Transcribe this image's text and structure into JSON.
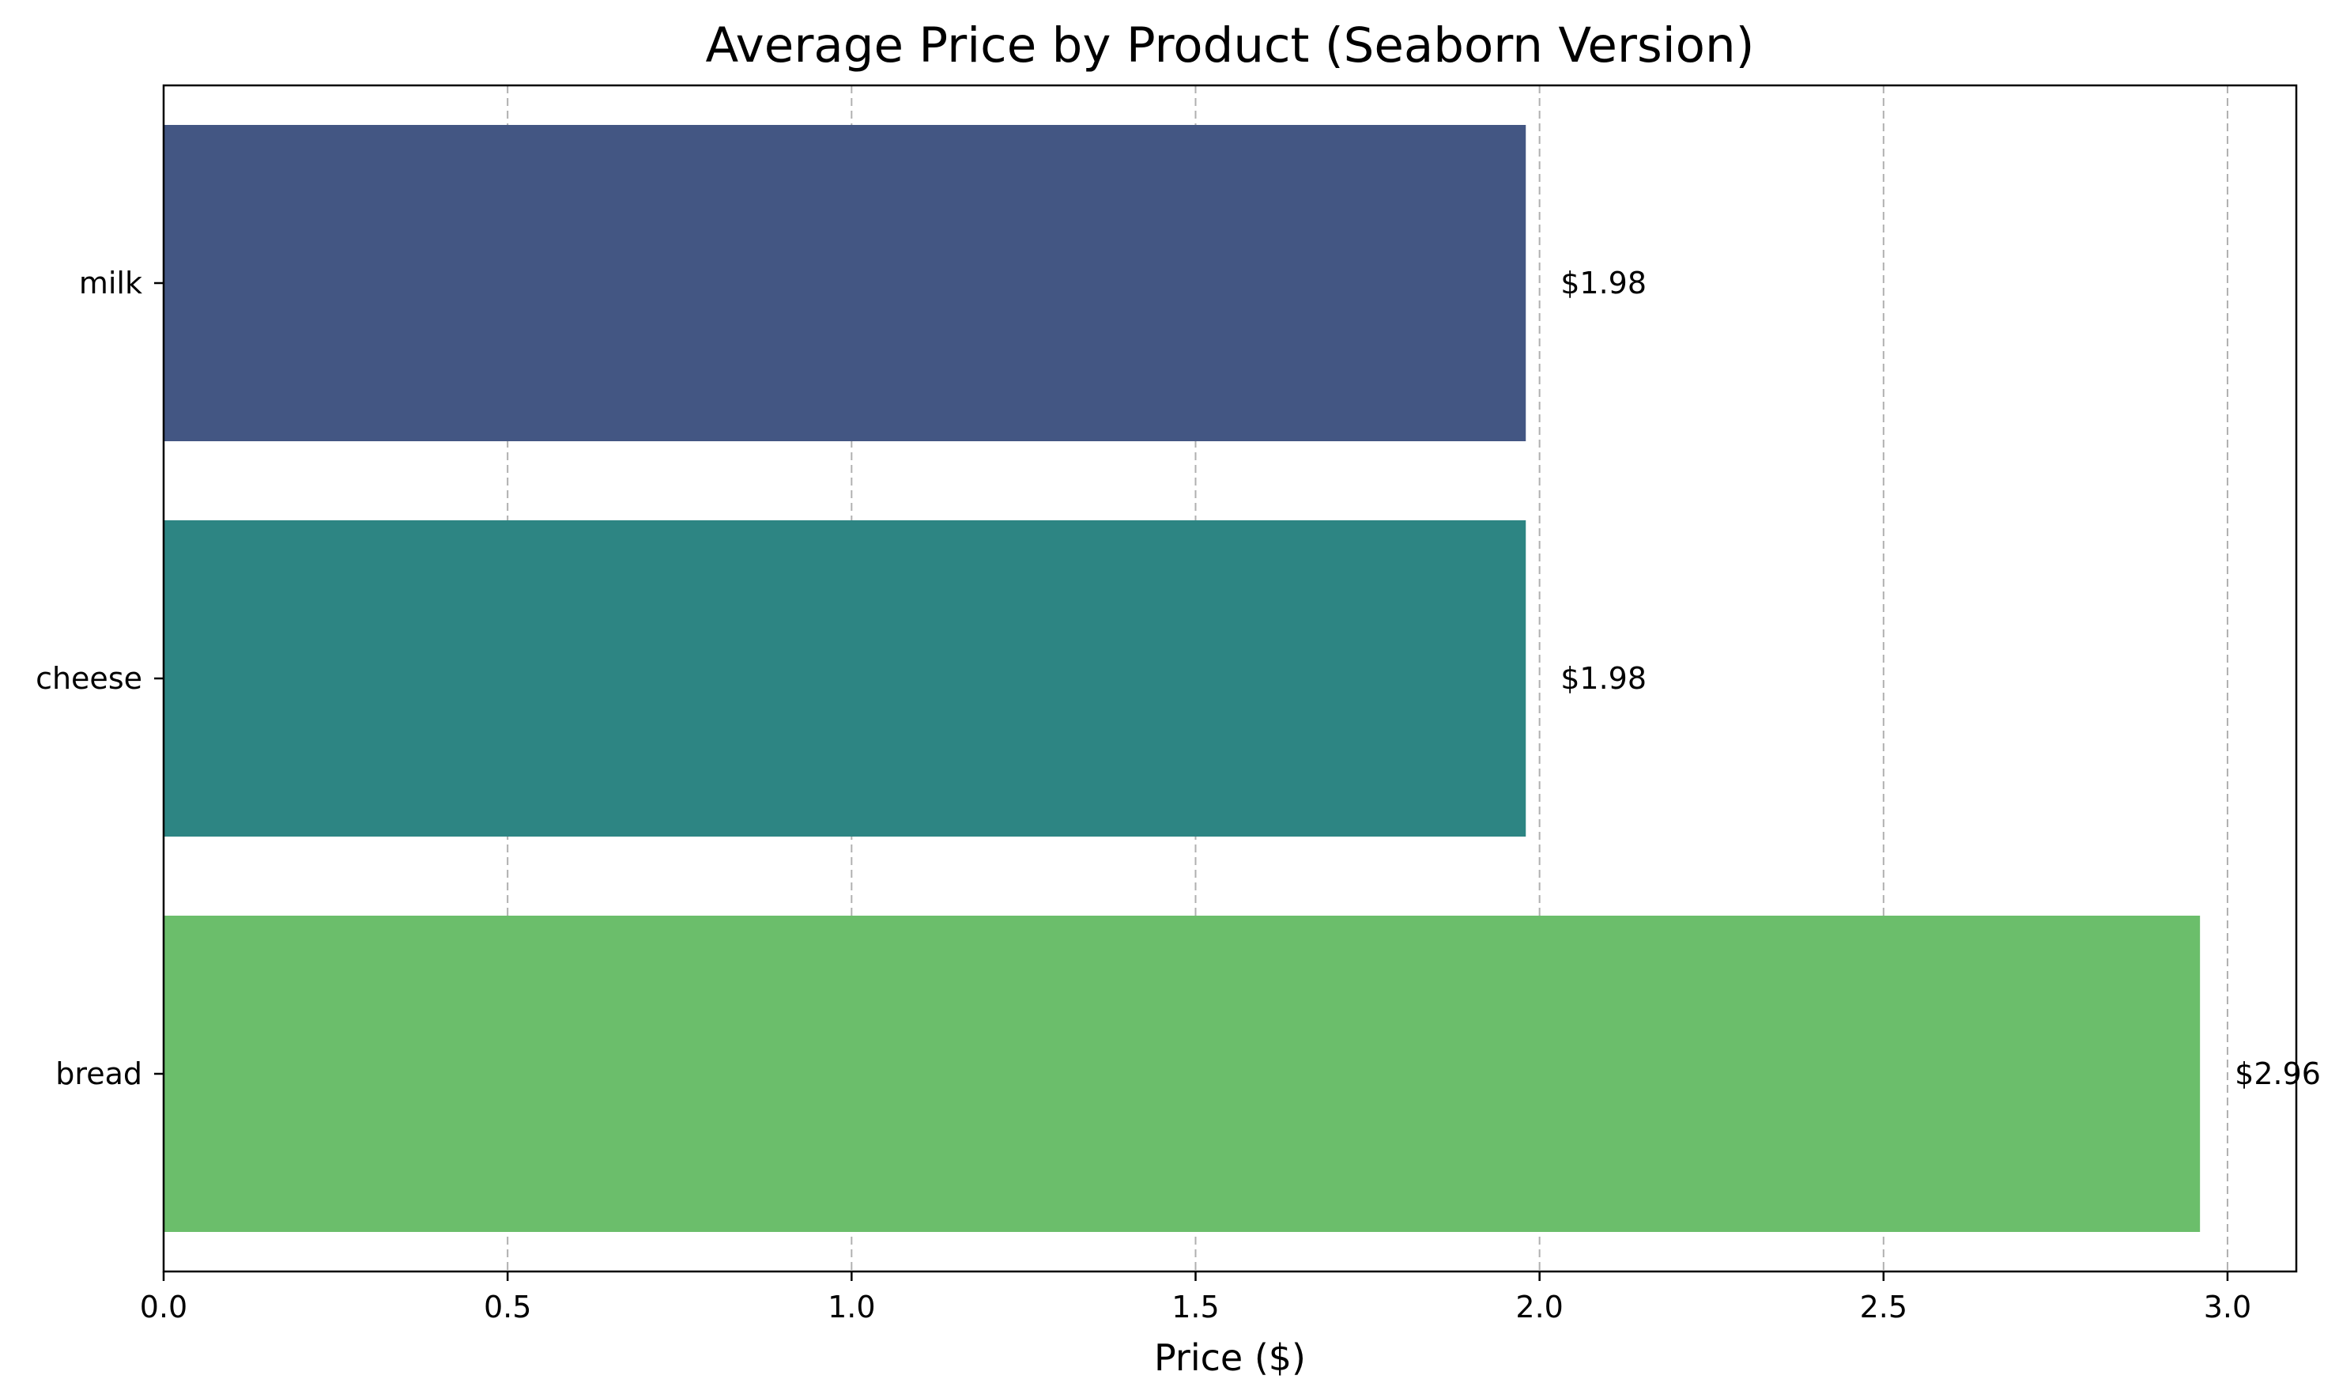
{
  "chart_data": {
    "type": "bar",
    "orientation": "horizontal",
    "title": "Average Price by Product (Seaborn Version)",
    "xlabel": "Price ($)",
    "ylabel": "",
    "categories": [
      "milk",
      "cheese",
      "bread"
    ],
    "values": [
      1.98,
      1.98,
      2.96
    ],
    "value_labels": [
      "$1.98",
      "$1.98",
      "$2.96"
    ],
    "colors": [
      "#435683",
      "#2d8583",
      "#6bbe6b"
    ],
    "xlim": [
      0,
      3.1
    ],
    "xticks": [
      0.0,
      0.5,
      1.0,
      1.5,
      2.0,
      2.5,
      3.0
    ],
    "xtick_labels": [
      "0.0",
      "0.5",
      "1.0",
      "1.5",
      "2.0",
      "2.5",
      "3.0"
    ],
    "grid": "x-axis dashed",
    "legend": "none"
  }
}
